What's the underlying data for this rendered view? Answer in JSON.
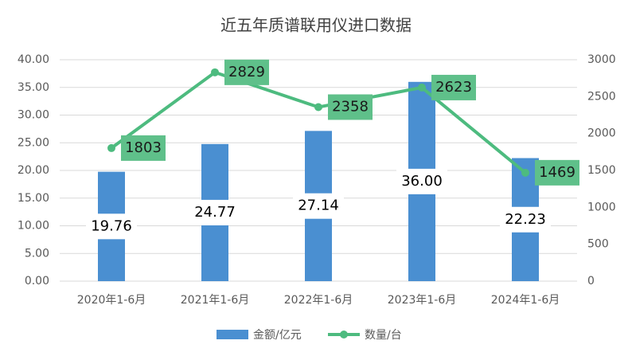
{
  "chart_data": {
    "type": "bar_line",
    "title": "近五年质谱联用仪进口数据",
    "categories": [
      "2020年1-6月",
      "2021年1-6月",
      "2022年1-6月",
      "2023年1-6月",
      "2024年1-6月"
    ],
    "series": [
      {
        "name": "金额/亿元",
        "color": "#4a8fd1",
        "type": "bar",
        "values": [
          19.76,
          24.77,
          27.14,
          36.0,
          22.23
        ],
        "value_labels": [
          "19.76",
          "24.77",
          "27.14",
          "36.00",
          "22.23"
        ]
      },
      {
        "name": "数量/台",
        "color": "#4dbb7f",
        "type": "line",
        "axis": "y2",
        "values": [
          1803,
          2829,
          2358,
          2623,
          1469
        ]
      }
    ],
    "ylim": [
      0,
      40
    ],
    "yticks": [
      {
        "value": 0,
        "label": "0.00"
      },
      {
        "value": 5,
        "label": "5.00"
      },
      {
        "value": 10,
        "label": "10.00"
      },
      {
        "value": 15,
        "label": "15.00"
      },
      {
        "value": 20,
        "label": "20.00"
      },
      {
        "value": 25,
        "label": "25.00"
      },
      {
        "value": 30,
        "label": "30.00"
      },
      {
        "value": 35,
        "label": "35.00"
      },
      {
        "value": 40,
        "label": "40.00"
      }
    ],
    "y2lim": [
      0,
      3000
    ],
    "y2ticks": [
      0,
      500,
      1000,
      1500,
      2000,
      2500,
      3000
    ],
    "legend": "bottom"
  }
}
